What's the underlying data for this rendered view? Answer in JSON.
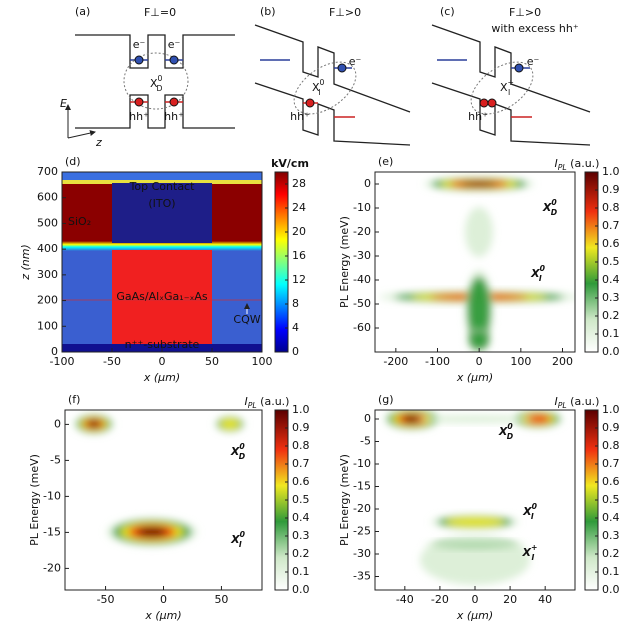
{
  "schematics": [
    {
      "tag": "(a)",
      "title": "F⊥=0",
      "electrons": [
        "e⁻",
        "e⁻"
      ],
      "holes": [
        "hh⁺",
        "hh⁺"
      ],
      "exciton": {
        "t": "X",
        "sup": "0",
        "sub": "D"
      }
    },
    {
      "tag": "(b)",
      "title": "F⊥>0",
      "electrons": [
        "e⁻"
      ],
      "holes": [
        "hh⁺"
      ],
      "exciton": {
        "t": "X",
        "sup": "0",
        "sub": "I"
      }
    },
    {
      "tag": "(c)",
      "title": "F⊥>0",
      "subtitle": "with excess hh⁺",
      "electrons": [
        "e⁻"
      ],
      "holes": [
        "hh⁺"
      ],
      "exciton": {
        "t": "X",
        "sup": "+",
        "sub": "I"
      }
    }
  ],
  "axes_labels": {
    "energy": "E",
    "position": "z"
  },
  "panels": [
    {
      "tag": "(d)",
      "xlim": [
        -100,
        100
      ],
      "xticks": [
        -100,
        -50,
        0,
        50,
        100
      ],
      "ylim": [
        0,
        700
      ],
      "yticks": [
        0,
        100,
        200,
        300,
        400,
        500,
        600,
        700
      ],
      "xlabel": "x (μm)",
      "ylabel": "z (nm)",
      "colorbar": {
        "title": "kV/cm",
        "clim": [
          0,
          30
        ],
        "ticks": [
          0,
          4,
          8,
          12,
          16,
          20,
          24,
          28
        ],
        "cmap": "jet"
      },
      "annotations": [
        "Top Contact",
        "(ITO)",
        "SiO₂",
        "GaAs/AlₓGa₁₋ₓAs",
        "CQW",
        "n⁺⁺-substrate"
      ]
    },
    {
      "tag": "(e)",
      "xlim": [
        -250,
        230
      ],
      "xticks": [
        -200,
        -100,
        0,
        100,
        200
      ],
      "ylim": [
        -70,
        5
      ],
      "yticks": [
        0,
        -10,
        -20,
        -30,
        -40,
        -50,
        -60
      ],
      "xlabel": "x (μm)",
      "ylabel": "PL Energy (meV)",
      "colorbar": {
        "title": {
          "t": "I",
          "sub": "PL",
          "after": " (a.u.)"
        },
        "clim": [
          0,
          1
        ],
        "cmap": "pl",
        "ticks": [
          {
            "value": 0,
            "label": "0.0"
          },
          {
            "value": 0.1,
            "label": "0.1"
          },
          {
            "value": 0.2,
            "label": "0.2"
          },
          {
            "value": 0.3,
            "label": "0.3"
          },
          {
            "value": 0.4,
            "label": "0.4"
          },
          {
            "value": 0.5,
            "label": "0.5"
          },
          {
            "value": 0.6,
            "label": "0.6"
          },
          {
            "value": 0.7,
            "label": "0.7"
          },
          {
            "value": 0.8,
            "label": "0.8"
          },
          {
            "value": 0.9,
            "label": "0.9"
          },
          {
            "value": 1,
            "label": "1.0"
          }
        ]
      },
      "annotations": [
        {
          "t": "X",
          "sup": "0",
          "sub": "D"
        },
        {
          "t": "X",
          "sup": "0",
          "sub": "I"
        }
      ]
    },
    {
      "tag": "(f)",
      "xlim": [
        -85,
        85
      ],
      "xticks": [
        -50,
        0,
        50
      ],
      "ylim": [
        -23,
        2
      ],
      "yticks": [
        0,
        -5,
        -10,
        -15,
        -20
      ],
      "xlabel": "x (μm)",
      "ylabel": "PL Energy (meV)",
      "colorbar": {
        "title": {
          "t": "I",
          "sub": "PL",
          "after": " (a.u.)"
        },
        "clim": [
          0,
          1
        ],
        "cmap": "pl",
        "ticks": [
          {
            "value": 0,
            "label": "0.0"
          },
          {
            "value": 0.1,
            "label": "0.1"
          },
          {
            "value": 0.2,
            "label": "0.2"
          },
          {
            "value": 0.3,
            "label": "0.3"
          },
          {
            "value": 0.4,
            "label": "0.4"
          },
          {
            "value": 0.5,
            "label": "0.5"
          },
          {
            "value": 0.6,
            "label": "0.6"
          },
          {
            "value": 0.7,
            "label": "0.7"
          },
          {
            "value": 0.8,
            "label": "0.8"
          },
          {
            "value": 0.9,
            "label": "0.9"
          },
          {
            "value": 1,
            "label": "1.0"
          }
        ]
      },
      "annotations": [
        {
          "t": "X",
          "sup": "0",
          "sub": "D"
        },
        {
          "t": "X",
          "sup": "0",
          "sub": "I"
        }
      ]
    },
    {
      "tag": "(g)",
      "xlim": [
        -57,
        57
      ],
      "xticks": [
        -40,
        -20,
        0,
        20,
        40
      ],
      "ylim": [
        -38,
        2
      ],
      "yticks": [
        0,
        -5,
        -10,
        -15,
        -20,
        -25,
        -30,
        -35
      ],
      "xlabel": "x (μm)",
      "ylabel": "PL Energy (meV)",
      "colorbar": {
        "title": {
          "t": "I",
          "sub": "PL",
          "after": " (a.u.)"
        },
        "clim": [
          0,
          1
        ],
        "cmap": "pl",
        "ticks": [
          {
            "value": 0,
            "label": "0.0"
          },
          {
            "value": 0.1,
            "label": "0.1"
          },
          {
            "value": 0.2,
            "label": "0.2"
          },
          {
            "value": 0.3,
            "label": "0.3"
          },
          {
            "value": 0.4,
            "label": "0.4"
          },
          {
            "value": 0.5,
            "label": "0.5"
          },
          {
            "value": 0.6,
            "label": "0.6"
          },
          {
            "value": 0.7,
            "label": "0.7"
          },
          {
            "value": 0.8,
            "label": "0.8"
          },
          {
            "value": 0.9,
            "label": "0.9"
          },
          {
            "value": 1,
            "label": "1.0"
          }
        ]
      },
      "annotations": [
        {
          "t": "X",
          "sup": "0",
          "sub": "D"
        },
        {
          "t": "X",
          "sup": "0",
          "sub": "I"
        },
        {
          "t": "X",
          "sup": "+",
          "sub": "I"
        }
      ]
    }
  ]
}
